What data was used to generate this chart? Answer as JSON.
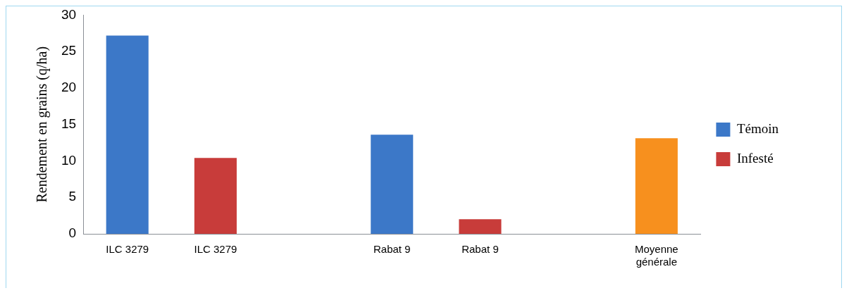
{
  "chart_data": {
    "type": "bar",
    "ylabel": "Rendement en grains (q/ha)",
    "categories": [
      "ILC 3279",
      "ILC 3279",
      null,
      "Rabat 9",
      "Rabat 9",
      null,
      "Moyenne générale"
    ],
    "series": [
      {
        "name": "Témoin",
        "color": "#3c78c8",
        "values": [
          27.2,
          null,
          null,
          13.6,
          null,
          null,
          null
        ]
      },
      {
        "name": "Infesté",
        "color": "#c83c3a",
        "values": [
          null,
          10.4,
          null,
          null,
          2.0,
          null,
          null
        ]
      },
      {
        "color": "#f7901e",
        "values": [
          null,
          null,
          null,
          null,
          null,
          null,
          13.1
        ]
      }
    ],
    "ylim": [
      0,
      30
    ],
    "yticks": [
      0,
      5,
      10,
      15,
      20,
      25,
      30
    ],
    "grid": false,
    "legend": "right"
  }
}
